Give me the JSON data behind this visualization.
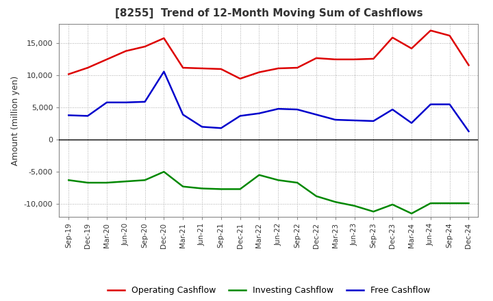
{
  "title": "[8255]  Trend of 12-Month Moving Sum of Cashflows",
  "ylabel": "Amount (million yen)",
  "x_labels": [
    "Sep-19",
    "Dec-19",
    "Mar-20",
    "Jun-20",
    "Sep-20",
    "Dec-20",
    "Mar-21",
    "Jun-21",
    "Sep-21",
    "Dec-21",
    "Mar-22",
    "Jun-22",
    "Sep-22",
    "Dec-22",
    "Mar-23",
    "Jun-23",
    "Sep-23",
    "Dec-23",
    "Mar-24",
    "Jun-24",
    "Sep-24",
    "Dec-24"
  ],
  "operating": [
    10200,
    11200,
    12500,
    13800,
    14500,
    15800,
    11200,
    11100,
    11000,
    9500,
    10500,
    11100,
    11200,
    12700,
    12500,
    12500,
    12600,
    15900,
    14200,
    17000,
    16200,
    11600
  ],
  "investing": [
    -6300,
    -6700,
    -6700,
    -6500,
    -6300,
    -5000,
    -7300,
    -7600,
    -7700,
    -7700,
    -5500,
    -6300,
    -6700,
    -8800,
    -9700,
    -10300,
    -11200,
    -10100,
    -11500,
    -9900,
    -9900,
    -9900
  ],
  "free": [
    3800,
    3700,
    5800,
    5800,
    5900,
    10600,
    3900,
    2000,
    1800,
    3700,
    4100,
    4800,
    4700,
    3900,
    3100,
    3000,
    2900,
    4700,
    2600,
    5500,
    5500,
    1300
  ],
  "operating_color": "#dd0000",
  "investing_color": "#008800",
  "free_color": "#0000cc",
  "background_color": "#ffffff",
  "grid_color": "#aaaaaa",
  "ylim": [
    -12000,
    18000
  ],
  "yticks": [
    -10000,
    -5000,
    0,
    5000,
    10000,
    15000
  ],
  "figsize": [
    7.2,
    4.4
  ],
  "dpi": 100
}
